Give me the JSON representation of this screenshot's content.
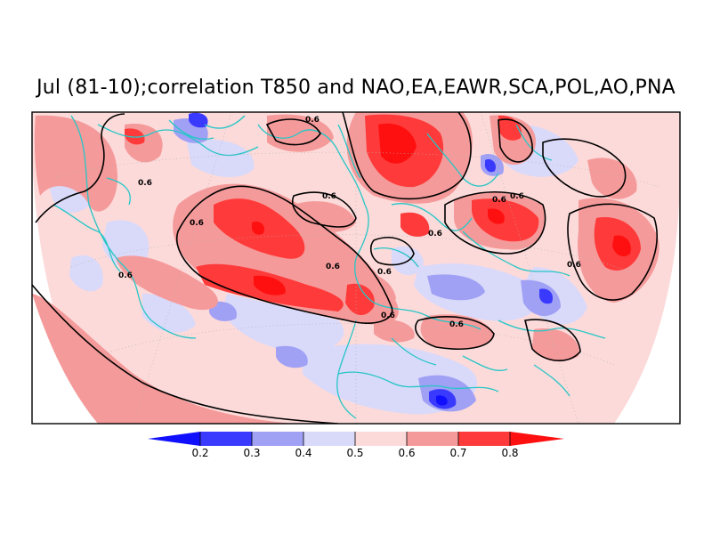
{
  "title": "Jul (81-10);correlation T850 and NAO,EA,EAWR,SCA,POL,AO,PNA",
  "contour_level_label": "0.6",
  "colorbar": {
    "ticks": [
      "0.2",
      "0.3",
      "0.4",
      "0.5",
      "0.6",
      "0.7",
      "0.8"
    ],
    "bins": [
      {
        "name": "below-0.2",
        "color": "#1010ff"
      },
      {
        "name": "0.2-0.3",
        "color": "#3a3aff"
      },
      {
        "name": "0.3-0.4",
        "color": "#a0a0f5"
      },
      {
        "name": "0.4-0.5",
        "color": "#d9d9fa"
      },
      {
        "name": "0.5-0.6",
        "color": "#fcdada"
      },
      {
        "name": "0.6-0.7",
        "color": "#f59a9a"
      },
      {
        "name": "0.7-0.8",
        "color": "#ff3a3a"
      },
      {
        "name": "above-0.8",
        "color": "#ff1010"
      }
    ]
  },
  "colors": {
    "coastline": "#26c6c6",
    "contour": "#000000",
    "background_field": "#fcdada"
  }
}
